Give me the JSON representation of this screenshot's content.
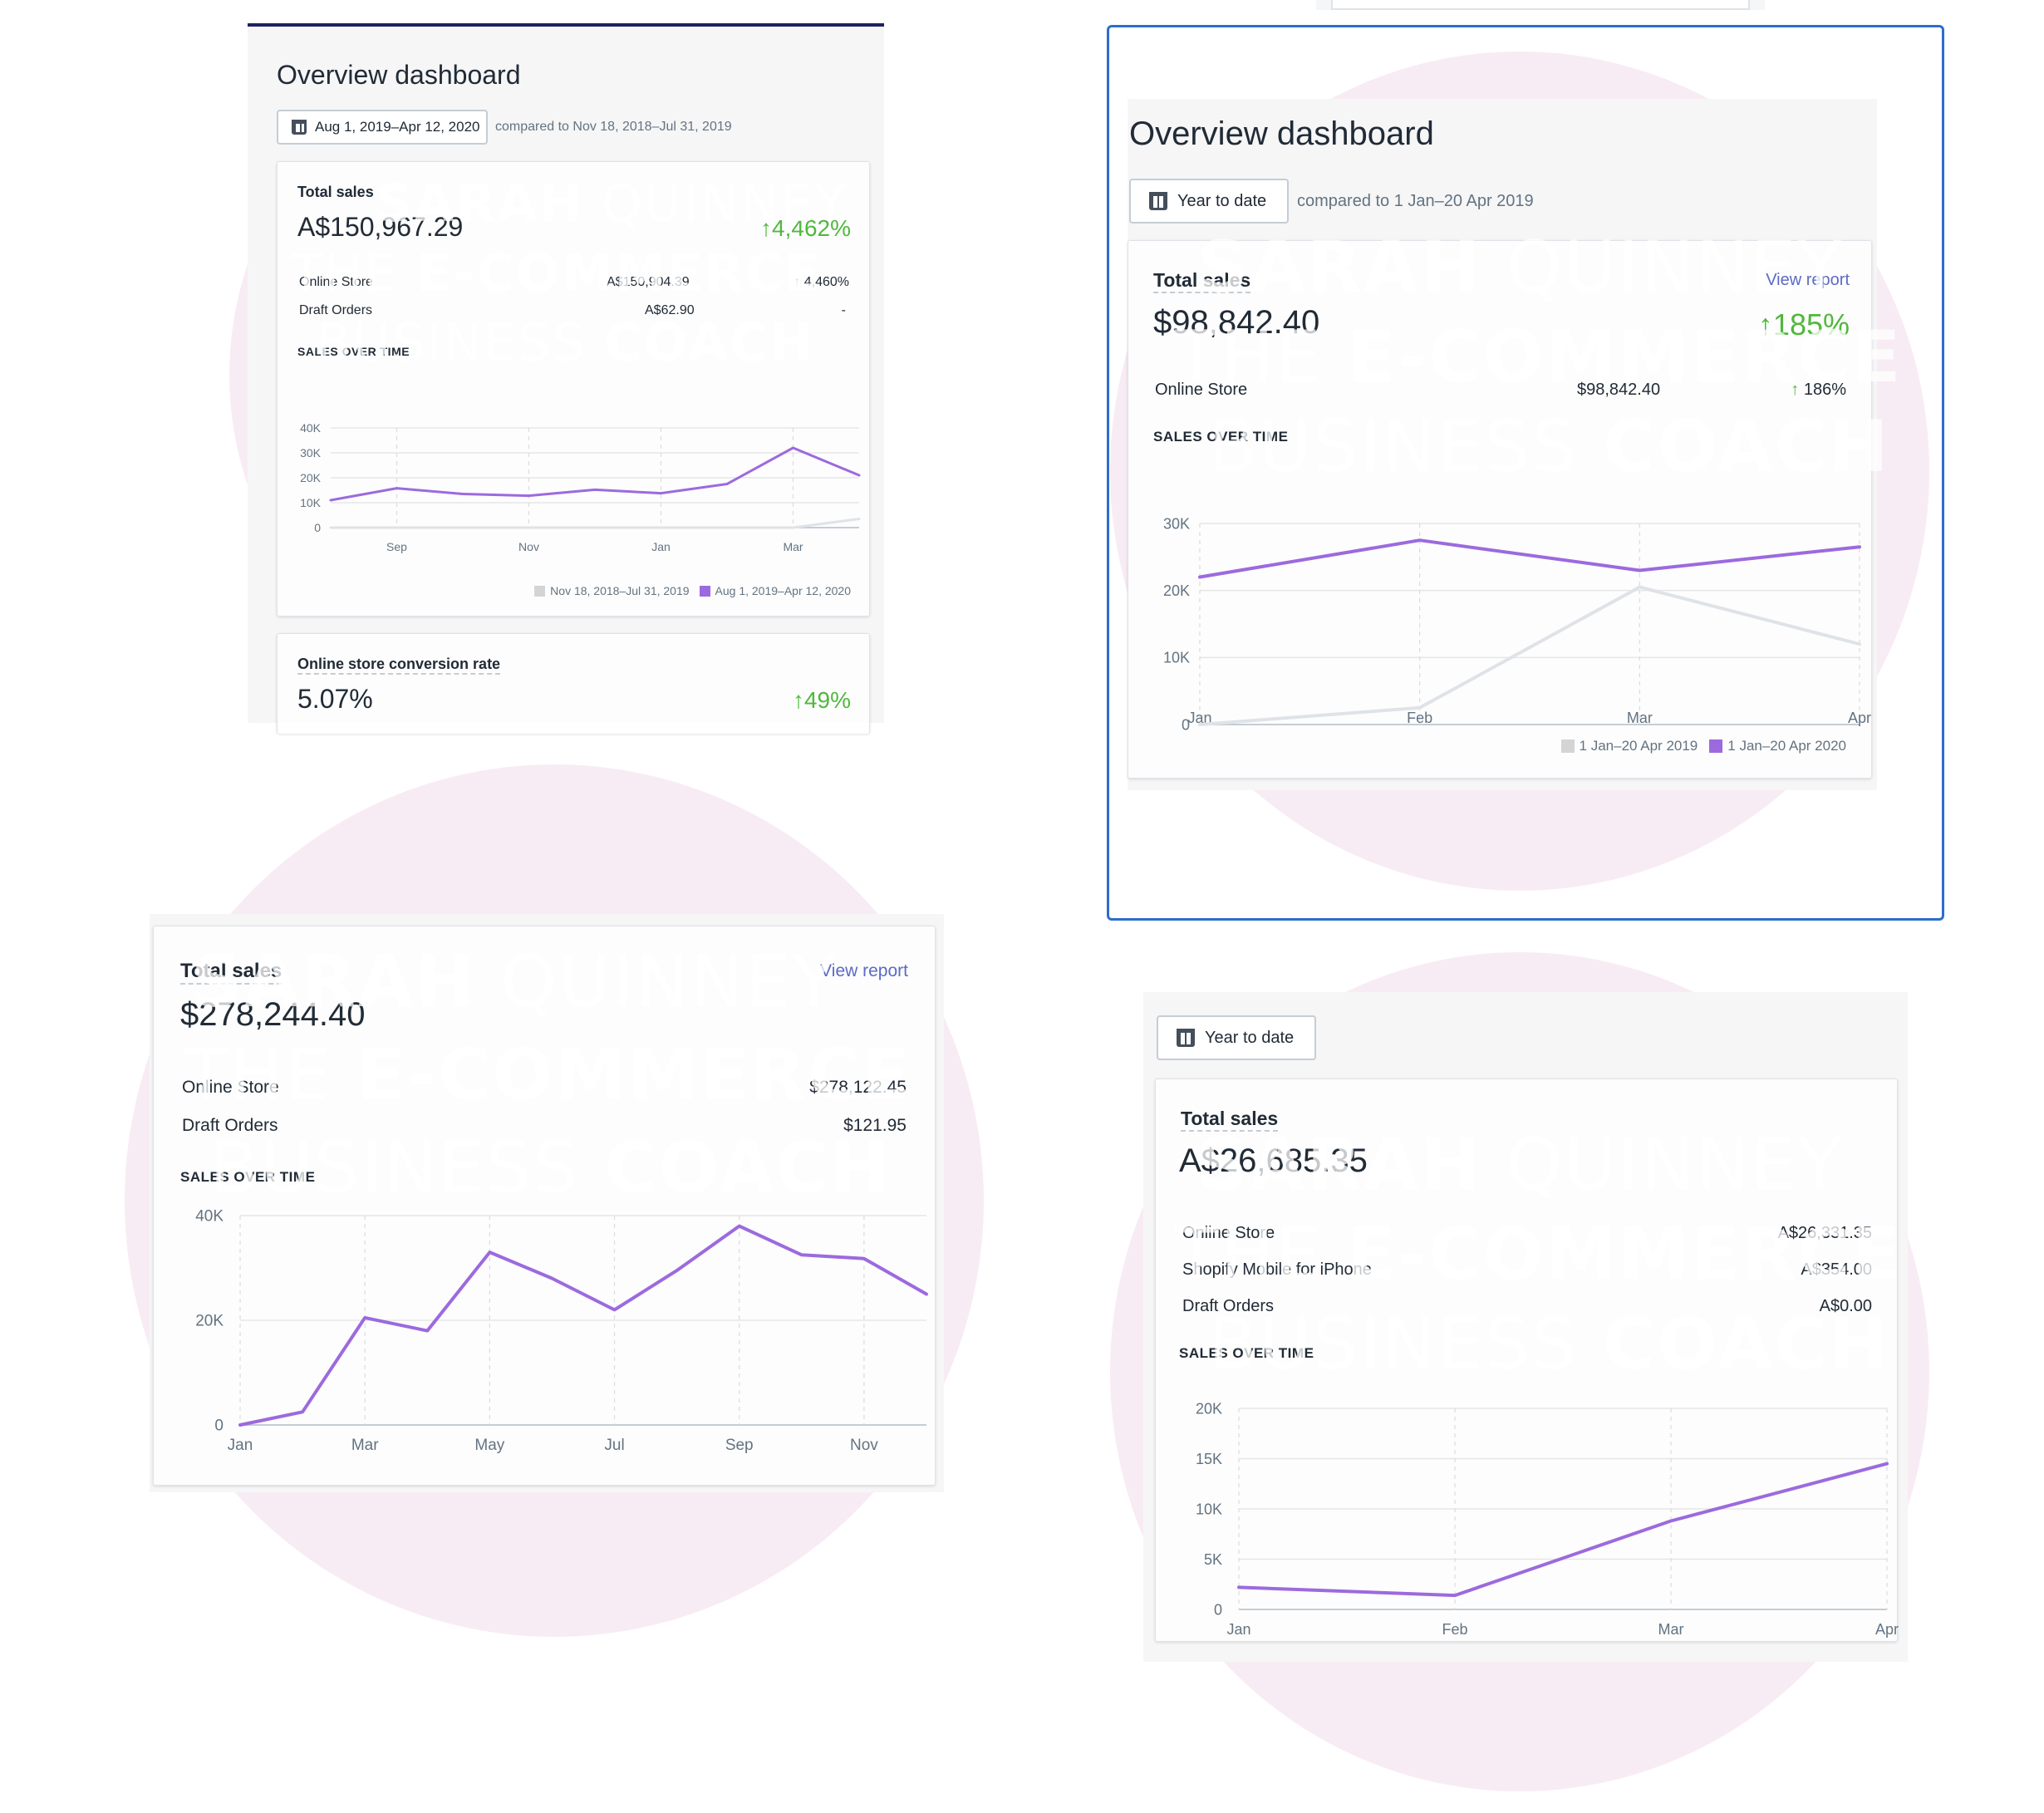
{
  "colors": {
    "current_series": "#9c6ade",
    "previous_series": "#dfe3e8",
    "up": "#50b83c",
    "link": "#5c6ac4",
    "watermark": "#f3d9e8"
  },
  "watermark": {
    "line1_bold": "SARAH",
    "line1_light": "QUINNEY",
    "line2_light": "THE",
    "line2_bold": "E-COMMERCE",
    "line3_light": "BUSINESS",
    "line3_bold": "COACH"
  },
  "panel1": {
    "title": "Overview dashboard",
    "date_range": "Aug 1, 2019–Apr 12, 2020",
    "compare": "compared to Nov 18, 2018–Jul 31, 2019",
    "total_sales_label": "Total sales",
    "total_sales_value": "A$150,967.29",
    "total_sales_change": "4,462%",
    "rows": [
      {
        "label": "Online Store",
        "value": "A$150,904.39",
        "change": "4,460%"
      },
      {
        "label": "Draft Orders",
        "value": "A$62.90",
        "change": "-"
      }
    ],
    "sales_over_time": "SALES OVER TIME",
    "legend_previous": "Nov 18, 2018–Jul 31, 2019",
    "legend_current": "Aug 1, 2019–Apr 12, 2020",
    "conversion_label": "Online store conversion rate",
    "conversion_value": "5.07%",
    "conversion_change": "49%"
  },
  "panel2": {
    "title": "Overview dashboard",
    "date_range": "Year to date",
    "compare": "compared to 1 Jan–20 Apr 2019",
    "total_sales_label": "Total sales",
    "view_report": "View report",
    "total_sales_value": "$98,842.40",
    "total_sales_change": "185%",
    "rows": [
      {
        "label": "Online Store",
        "value": "$98,842.40",
        "change": "186%"
      }
    ],
    "sales_over_time": "SALES OVER TIME",
    "legend_previous": "1 Jan–20 Apr 2019",
    "legend_current": "1 Jan–20 Apr 2020"
  },
  "panel3": {
    "total_sales_label": "Total sales",
    "view_report": "View report",
    "total_sales_value": "$278,244.40",
    "rows": [
      {
        "label": "Online Store",
        "value": "$278,122.45"
      },
      {
        "label": "Draft Orders",
        "value": "$121.95"
      }
    ],
    "sales_over_time": "SALES OVER TIME"
  },
  "panel4": {
    "date_range": "Year to date",
    "total_sales_label": "Total sales",
    "total_sales_value": "A$26,685.35",
    "rows": [
      {
        "label": "Online Store",
        "value": "A$26,331.35"
      },
      {
        "label": "Shopify Mobile for iPhone",
        "value": "A$354.00"
      },
      {
        "label": "Draft Orders",
        "value": "A$0.00"
      }
    ],
    "sales_over_time": "SALES OVER TIME"
  },
  "chart_data": [
    {
      "type": "line",
      "title": "SALES OVER TIME",
      "x_tick_labels": [
        "Sep",
        "Nov",
        "Jan",
        "Mar"
      ],
      "y_tick_labels": [
        "0",
        "10K",
        "20K",
        "30K",
        "40K"
      ],
      "ylim": [
        0,
        40000
      ],
      "series": [
        {
          "name": "Aug 1, 2019–Apr 12, 2020",
          "values": [
            11000,
            15800,
            13500,
            12800,
            15200,
            13800,
            17500,
            32000,
            21000
          ]
        },
        {
          "name": "Nov 18, 2018–Jul 31, 2019",
          "values": [
            0,
            0,
            0,
            0,
            0,
            0,
            0,
            0,
            3500
          ]
        }
      ]
    },
    {
      "type": "line",
      "title": "SALES OVER TIME",
      "x_tick_labels": [
        "Jan",
        "Feb",
        "Mar",
        "Apr"
      ],
      "y_tick_labels": [
        "0",
        "10K",
        "20K",
        "30K"
      ],
      "ylim": [
        0,
        30000
      ],
      "series": [
        {
          "name": "1 Jan–20 Apr 2020",
          "values": [
            22000,
            27500,
            23000,
            26500
          ]
        },
        {
          "name": "1 Jan–20 Apr 2019",
          "values": [
            0,
            2500,
            20500,
            12000
          ]
        }
      ]
    },
    {
      "type": "line",
      "title": "SALES OVER TIME",
      "x_tick_labels": [
        "Jan",
        "Mar",
        "May",
        "Jul",
        "Sep",
        "Nov"
      ],
      "y_tick_labels": [
        "0",
        "20K",
        "40K"
      ],
      "ylim": [
        0,
        40000
      ],
      "series": [
        {
          "values": [
            0,
            2500,
            20500,
            18000,
            33000,
            28000,
            22000,
            29500,
            38000,
            32500,
            31800,
            25000
          ]
        }
      ]
    },
    {
      "type": "line",
      "title": "SALES OVER TIME",
      "x_tick_labels": [
        "Jan",
        "Feb",
        "Mar",
        "Apr"
      ],
      "y_tick_labels": [
        "0",
        "5K",
        "10K",
        "15K",
        "20K"
      ],
      "ylim": [
        0,
        20000
      ],
      "series": [
        {
          "values": [
            2200,
            1400,
            8800,
            14500
          ]
        }
      ]
    }
  ]
}
